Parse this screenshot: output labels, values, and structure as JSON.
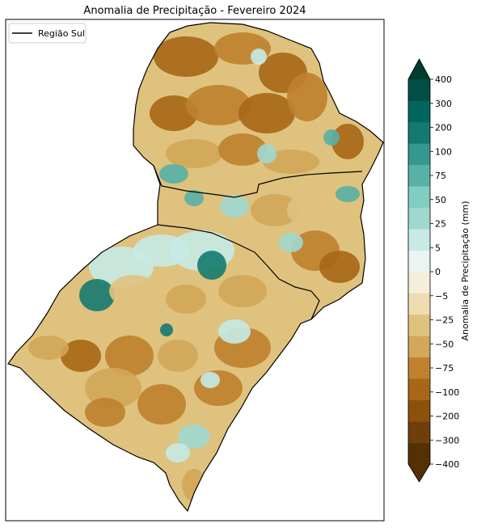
{
  "title": "Anomalia de Precipitação - Fevereiro 2024",
  "legend": {
    "label": "Região Sul",
    "line_color": "#000000"
  },
  "colorbar": {
    "label": "Anomalia de Precipitação (mm)",
    "ticks": [
      "400",
      "300",
      "200",
      "100",
      "75",
      "50",
      "25",
      "5",
      "0",
      "−5",
      "−25",
      "−50",
      "−75",
      "−100",
      "−200",
      "−300",
      "−400"
    ],
    "colors": [
      "#543005",
      "#6e3f0a",
      "#8c510a",
      "#a76716",
      "#bf812d",
      "#d2a759",
      "#dfc27d",
      "#eeddb0",
      "#f6eedc",
      "#eaf4f2",
      "#c7eae5",
      "#a0d8cf",
      "#80cdc1",
      "#58b0a6",
      "#35978f",
      "#147a70",
      "#01665e",
      "#004e44"
    ],
    "extend_low_color": "#543005",
    "extend_high_color": "#003c30"
  },
  "map": {
    "base_color": "#dfc27d",
    "region_outline_color": "#000000",
    "patches": [
      {
        "value": -100,
        "color": "#a76716"
      },
      {
        "value": -75,
        "color": "#bf812d"
      },
      {
        "value": -50,
        "color": "#d2a759"
      },
      {
        "value": -25,
        "color": "#dfc27d"
      },
      {
        "value": 5,
        "color": "#c7eae5"
      },
      {
        "value": 25,
        "color": "#a0d8cf"
      },
      {
        "value": 75,
        "color": "#58b0a6"
      },
      {
        "value": 200,
        "color": "#147a70"
      }
    ]
  }
}
